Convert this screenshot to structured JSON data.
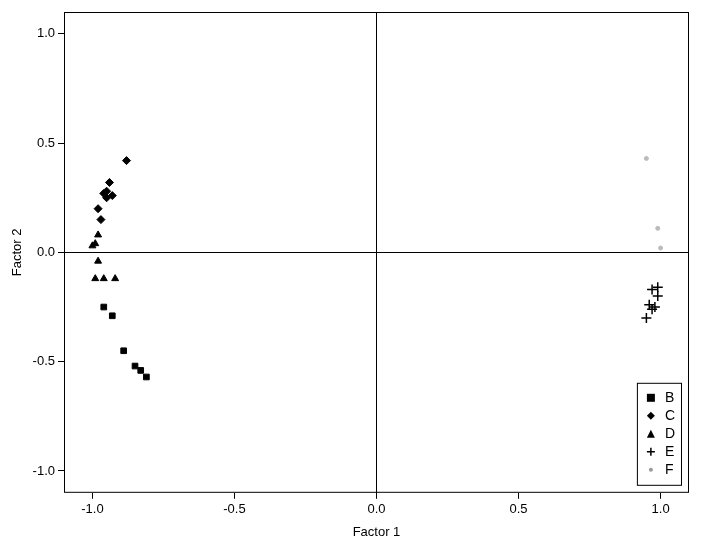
{
  "chart_data": {
    "type": "scatter",
    "x_label": "Factor 1",
    "y_label": "Factor 2",
    "xlim": [
      -1.1,
      1.1
    ],
    "ylim": [
      -1.1,
      1.1
    ],
    "xticks": [
      {
        "value": -1,
        "label": "-1.0"
      },
      {
        "value": -0.5,
        "label": "-0.5"
      },
      {
        "value": 0,
        "label": "0.0"
      },
      {
        "value": 0.5,
        "label": "0.5"
      },
      {
        "value": 1,
        "label": "1.0"
      }
    ],
    "yticks": [
      {
        "value": -1,
        "label": "-1.0"
      },
      {
        "value": -0.5,
        "label": "-0.5"
      },
      {
        "value": 0,
        "label": "0.0"
      },
      {
        "value": 0.5,
        "label": "0.5"
      },
      {
        "value": 1,
        "label": "1.0"
      }
    ],
    "grid": false,
    "legend": "bottom-right",
    "series": [
      {
        "name": "B",
        "color": "#000000",
        "marker": "square",
        "x": [
          -0.96,
          -0.93,
          -0.89,
          -0.85,
          -0.83,
          -0.81
        ],
        "values": [
          -0.25,
          -0.29,
          -0.45,
          -0.52,
          -0.54,
          -0.57
        ]
      },
      {
        "name": "C",
        "color": "#000000",
        "marker": "diamond",
        "x": [
          -0.88,
          -0.94,
          -0.95,
          -0.93,
          -0.95,
          -0.96,
          -0.97,
          -0.98
        ],
        "values": [
          0.42,
          0.32,
          0.28,
          0.26,
          0.25,
          0.27,
          0.15,
          0.2
        ]
      },
      {
        "name": "D",
        "color": "#000000",
        "marker": "triangle",
        "x": [
          -1.0,
          -0.99,
          -0.98,
          -0.98,
          -0.99,
          -0.96,
          -0.92
        ],
        "values": [
          0.03,
          0.04,
          0.08,
          -0.04,
          -0.12,
          -0.12,
          -0.12
        ]
      },
      {
        "name": "E",
        "color": "#000000",
        "marker": "plus",
        "x": [
          0.97,
          0.99,
          0.96,
          0.98,
          0.99,
          0.95,
          0.97
        ],
        "values": [
          -0.17,
          -0.16,
          -0.24,
          -0.25,
          -0.2,
          -0.3,
          -0.26
        ]
      },
      {
        "name": "F",
        "color": "#bbbbbb",
        "marker": "dot",
        "x": [
          0.95,
          0.99,
          1.0
        ],
        "values": [
          0.43,
          0.11,
          0.02
        ]
      }
    ]
  }
}
